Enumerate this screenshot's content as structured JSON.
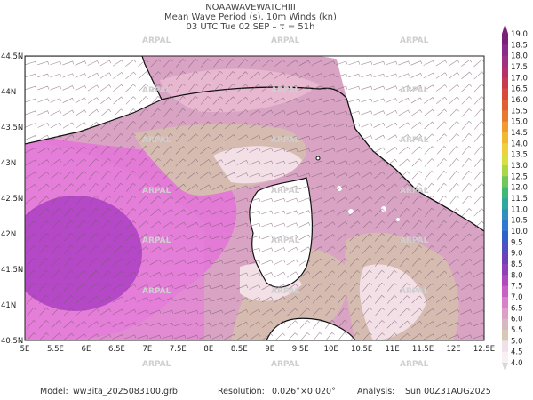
{
  "header": {
    "title": "NOAAWAVEWATCHIII",
    "subtitle": "Mean Wave Period (s), 10m Winds (kn)",
    "time": "03 UTC Tue 02 SEP  –  τ = 51h"
  },
  "map": {
    "lat_labels": [
      "44.5N",
      "44N",
      "43.5N",
      "43N",
      "42.5N",
      "42N",
      "41.5N",
      "41N",
      "40.5N"
    ],
    "lon_labels": [
      "5E",
      "5.5E",
      "6E",
      "6.5E",
      "7E",
      "7.5E",
      "8E",
      "8.5E",
      "9E",
      "9.5E",
      "10E",
      "10.5E",
      "11E",
      "11.5E",
      "12E",
      "12.5E"
    ],
    "watermark": "ARPAL"
  },
  "colorbar": {
    "labels": [
      "19.0",
      "18.5",
      "18.0",
      "17.5",
      "17.0",
      "16.5",
      "16.0",
      "15.5",
      "15.0",
      "14.5",
      "14.0",
      "13.5",
      "13.0",
      "12.5",
      "12.0",
      "11.5",
      "11.0",
      "10.5",
      "10.0",
      "9.5",
      "9.0",
      "8.5",
      "8.0",
      "7.5",
      "7.0",
      "6.5",
      "6.0",
      "5.5",
      "5.0",
      "4.5",
      "4.0"
    ],
    "colors": [
      "#7a1f7a",
      "#8a2a8a",
      "#a03080",
      "#b8306a",
      "#c83a50",
      "#d84a3a",
      "#e06030",
      "#e87a30",
      "#f09a30",
      "#f2b830",
      "#f0d040",
      "#d8e040",
      "#a8d848",
      "#70c858",
      "#40b878",
      "#30a8a0",
      "#3090c0",
      "#3078d0",
      "#3060c8",
      "#5050c0",
      "#7040b8",
      "#9040b8",
      "#b048c0",
      "#c860c8",
      "#d880c8",
      "#dca0c8",
      "#d8b8c0",
      "#d8c8b8",
      "#f0e0e8",
      "#f8f0f4"
    ]
  },
  "footer": {
    "model_label": "Model:",
    "model": "ww3ita_2025083100.grb",
    "resolution_label": "Resolution:",
    "resolution": "0.026°×0.020°",
    "analysis_label": "Analysis:",
    "analysis": "Sun 00Z31AUG2025"
  }
}
